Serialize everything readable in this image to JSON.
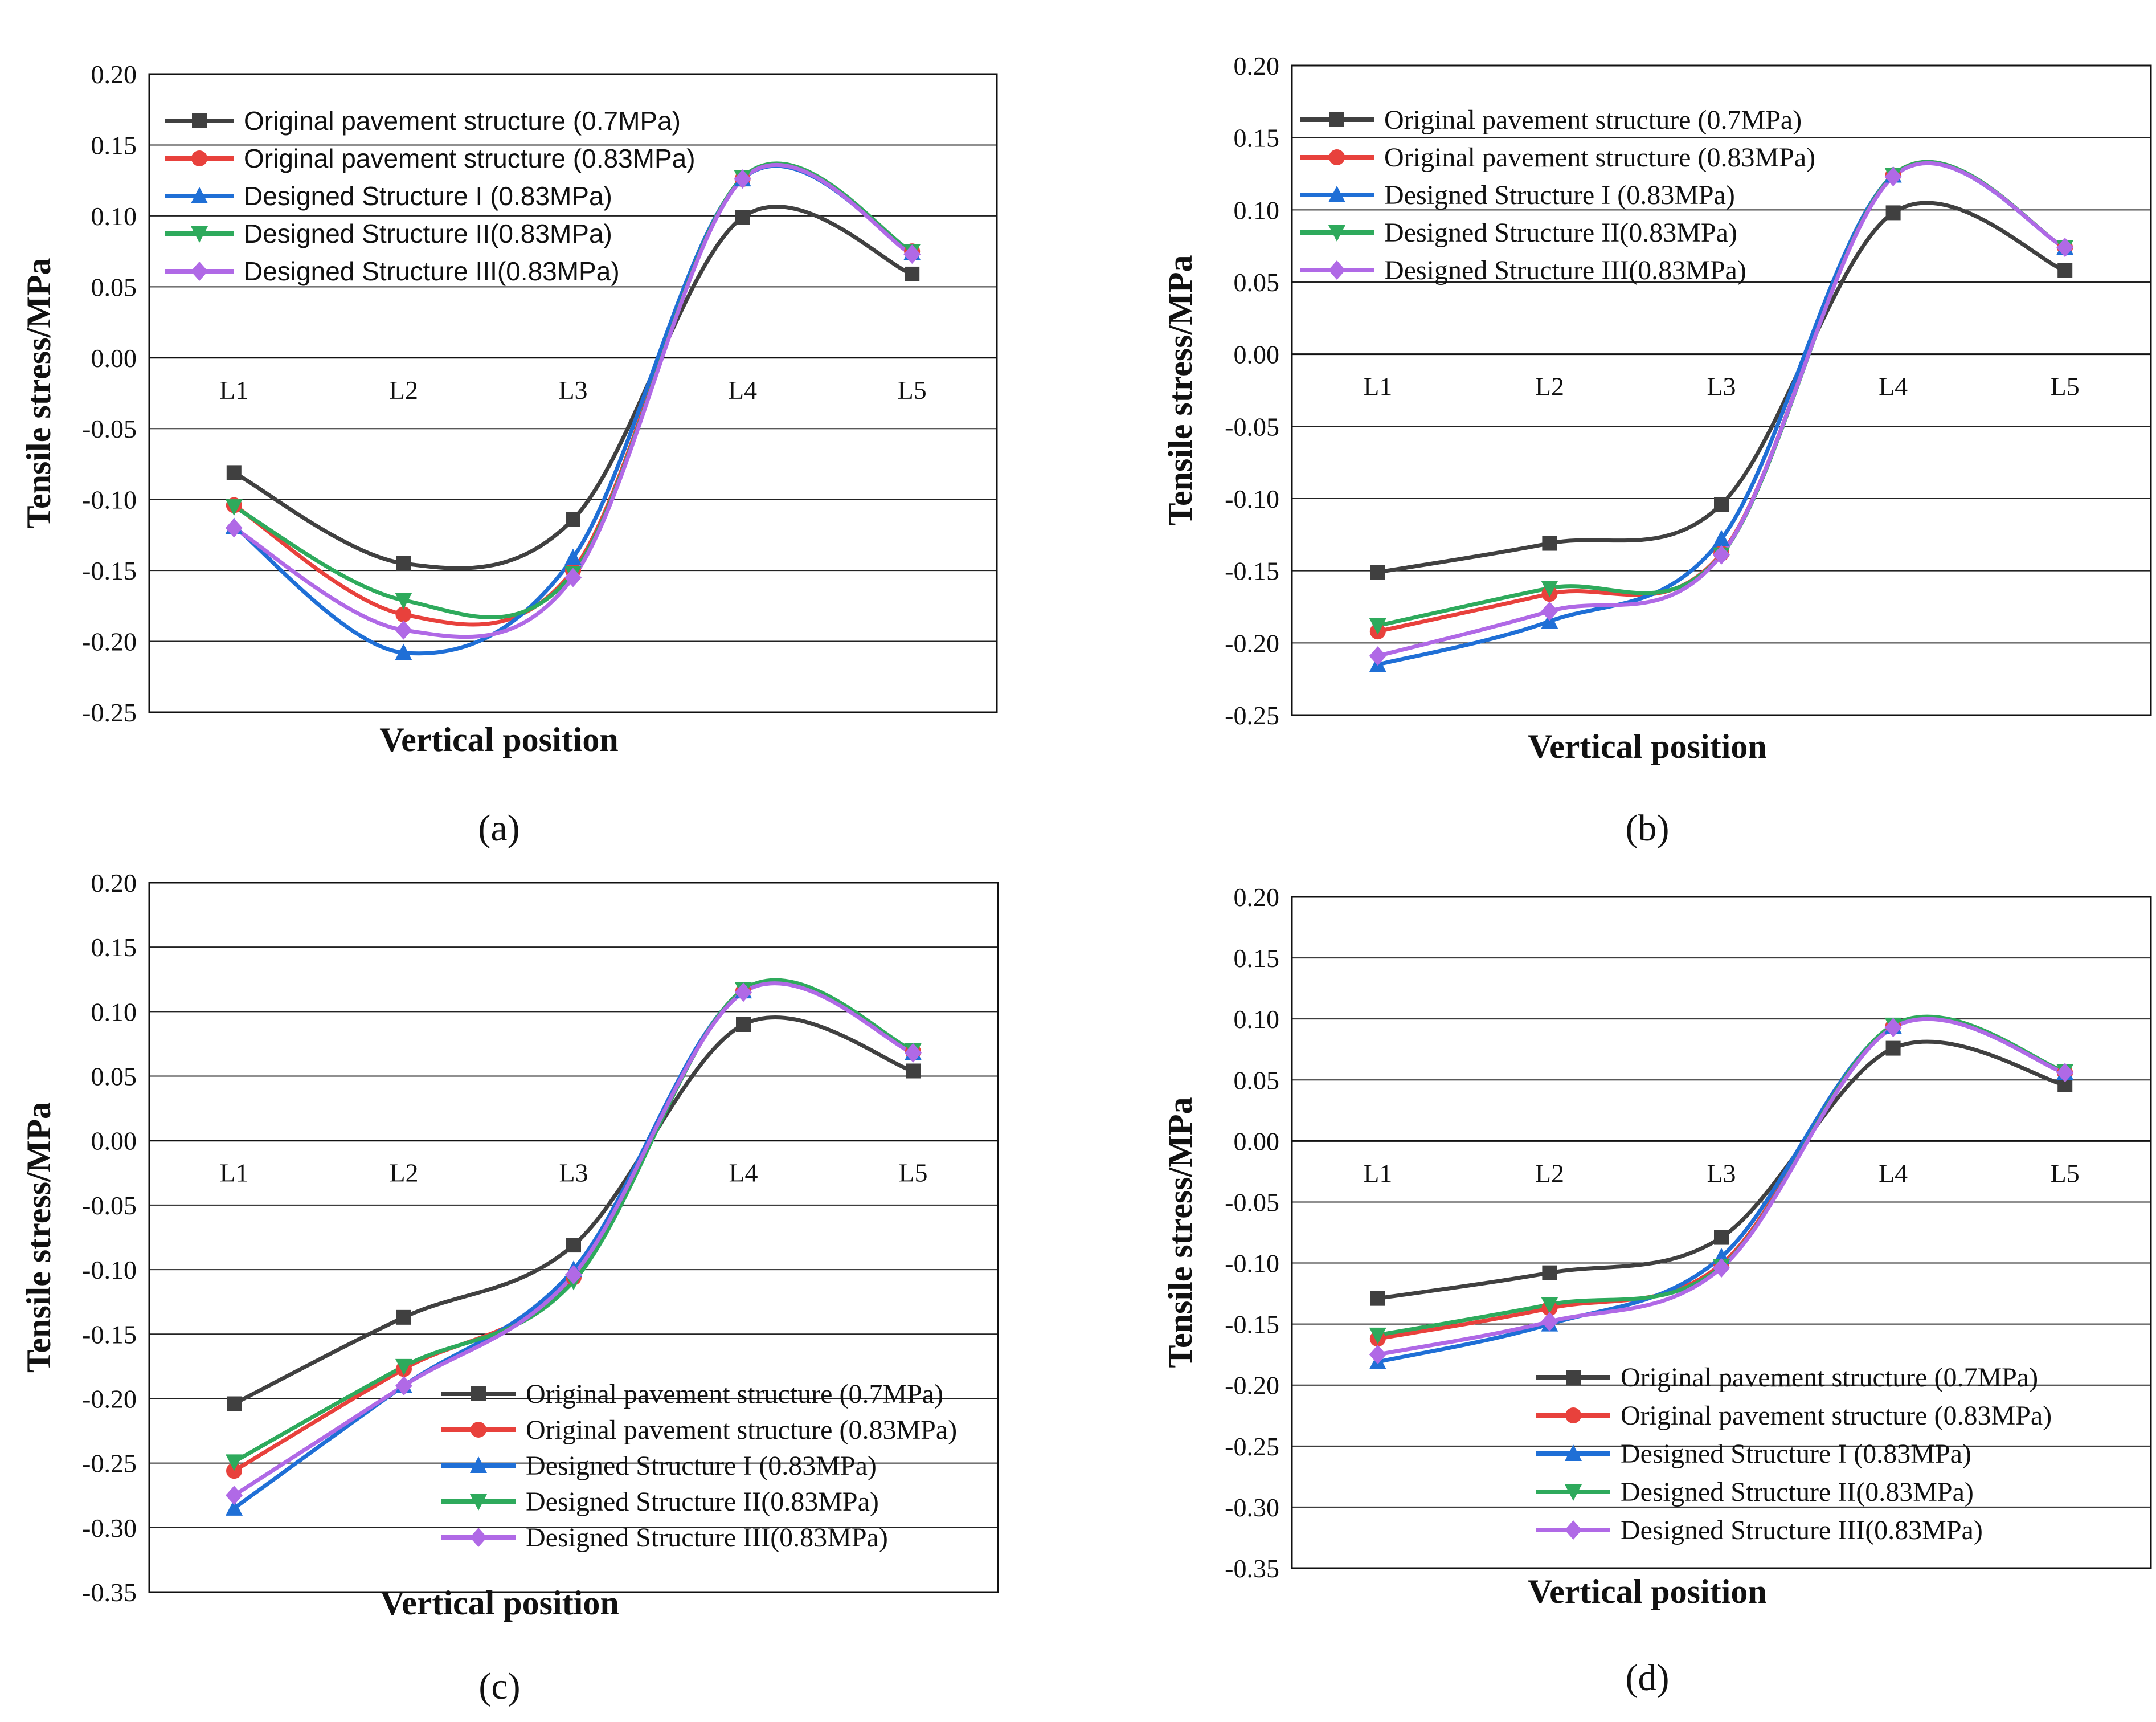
{
  "series_colors": [
    "#404040",
    "#e8413c",
    "#1f6fd6",
    "#2eaa5c",
    "#b069e6"
  ],
  "series_markers": [
    "square",
    "circle",
    "triangle-up",
    "triangle-down",
    "diamond"
  ],
  "chart_data": [
    {
      "type": "line",
      "panel": "a",
      "caption": "(a)",
      "xlabel": "Vertical position",
      "ylabel": "Tensile stress/MPa",
      "ylim": [
        -0.25,
        0.2
      ],
      "yticks": [
        "0.20",
        "0.15",
        "0.10",
        "0.05",
        "0.00",
        "-0.05",
        "-0.10",
        "-0.15",
        "-0.20",
        "-0.25"
      ],
      "categories": [
        "L1",
        "L2",
        "L3",
        "L4",
        "L5"
      ],
      "legend_position": "top-left",
      "series": [
        {
          "name": "Original pavement structure (0.7MPa)",
          "values": [
            -0.081,
            -0.145,
            -0.114,
            0.099,
            0.059
          ]
        },
        {
          "name": "Original pavement structure (0.83MPa)",
          "values": [
            -0.104,
            -0.181,
            -0.15,
            0.126,
            0.075
          ]
        },
        {
          "name": "Designed Structure I (0.83MPa)",
          "values": [
            -0.119,
            -0.208,
            -0.141,
            0.126,
            0.074
          ]
        },
        {
          "name": "Designed Structure II(0.83MPa)",
          "values": [
            -0.105,
            -0.171,
            -0.152,
            0.127,
            0.075
          ]
        },
        {
          "name": "Designed Structure III(0.83MPa)",
          "values": [
            -0.12,
            -0.192,
            -0.155,
            0.126,
            0.073
          ]
        }
      ]
    },
    {
      "type": "line",
      "panel": "b",
      "caption": "(b)",
      "xlabel": "Vertical position",
      "ylabel": "Tensile stress/MPa",
      "ylim": [
        -0.25,
        0.2
      ],
      "yticks": [
        "0.20",
        "0.15",
        "0.10",
        "0.05",
        "0.00",
        "-0.05",
        "-0.10",
        "-0.15",
        "-0.20",
        "-0.25"
      ],
      "categories": [
        "L1",
        "L2",
        "L3",
        "L4",
        "L5"
      ],
      "legend_position": "top-left",
      "series": [
        {
          "name": "Original pavement structure (0.7MPa)",
          "values": [
            -0.151,
            -0.131,
            -0.104,
            0.098,
            0.058
          ]
        },
        {
          "name": "Original pavement structure (0.83MPa)",
          "values": [
            -0.192,
            -0.166,
            -0.138,
            0.124,
            0.074
          ]
        },
        {
          "name": "Designed Structure I (0.83MPa)",
          "values": [
            -0.215,
            -0.185,
            -0.128,
            0.124,
            0.074
          ]
        },
        {
          "name": "Designed Structure II(0.83MPa)",
          "values": [
            -0.188,
            -0.162,
            -0.139,
            0.124,
            0.074
          ]
        },
        {
          "name": "Designed Structure III(0.83MPa)",
          "values": [
            -0.209,
            -0.178,
            -0.139,
            0.123,
            0.074
          ]
        }
      ]
    },
    {
      "type": "line",
      "panel": "c",
      "caption": "(c)",
      "xlabel": "Vertical position",
      "ylabel": "Tensile stress/MPa",
      "ylim": [
        -0.35,
        0.2
      ],
      "yticks": [
        "0.20",
        "0.15",
        "0.10",
        "0.05",
        "0.00",
        "-0.05",
        "-0.10",
        "-0.15",
        "-0.20",
        "-0.25",
        "-0.30",
        "-0.35"
      ],
      "categories": [
        "L1",
        "L2",
        "L3",
        "L4",
        "L5"
      ],
      "legend_position": "bottom-right",
      "series": [
        {
          "name": "Original pavement structure (0.7MPa)",
          "values": [
            -0.204,
            -0.137,
            -0.081,
            0.09,
            0.054
          ]
        },
        {
          "name": "Original pavement structure (0.83MPa)",
          "values": [
            -0.256,
            -0.177,
            -0.106,
            0.116,
            0.069
          ]
        },
        {
          "name": "Designed Structure I (0.83MPa)",
          "values": [
            -0.285,
            -0.19,
            -0.1,
            0.116,
            0.068
          ]
        },
        {
          "name": "Designed Structure II(0.83MPa)",
          "values": [
            -0.249,
            -0.175,
            -0.109,
            0.117,
            0.07
          ]
        },
        {
          "name": "Designed Structure III(0.83MPa)",
          "values": [
            -0.275,
            -0.19,
            -0.104,
            0.115,
            0.068
          ]
        }
      ]
    },
    {
      "type": "line",
      "panel": "d",
      "caption": "(d)",
      "xlabel": "Vertical position",
      "ylabel": "Tensile stress/MPa",
      "ylim": [
        -0.35,
        0.2
      ],
      "yticks": [
        "0.20",
        "0.15",
        "0.10",
        "0.05",
        "0.00",
        "-0.05",
        "-0.10",
        "-0.15",
        "-0.20",
        "-0.25",
        "-0.30",
        "-0.35"
      ],
      "categories": [
        "L1",
        "L2",
        "L3",
        "L4",
        "L5"
      ],
      "legend_position": "bottom-right",
      "series": [
        {
          "name": "Original pavement structure (0.7MPa)",
          "values": [
            -0.129,
            -0.108,
            -0.079,
            0.076,
            0.046
          ]
        },
        {
          "name": "Original pavement structure (0.83MPa)",
          "values": [
            -0.162,
            -0.137,
            -0.101,
            0.094,
            0.056
          ]
        },
        {
          "name": "Designed Structure I (0.83MPa)",
          "values": [
            -0.181,
            -0.15,
            -0.095,
            0.094,
            0.056
          ]
        },
        {
          "name": "Designed Structure II(0.83MPa)",
          "values": [
            -0.159,
            -0.134,
            -0.103,
            0.095,
            0.057
          ]
        },
        {
          "name": "Designed Structure III(0.83MPa)",
          "values": [
            -0.175,
            -0.148,
            -0.104,
            0.093,
            0.056
          ]
        }
      ]
    }
  ]
}
